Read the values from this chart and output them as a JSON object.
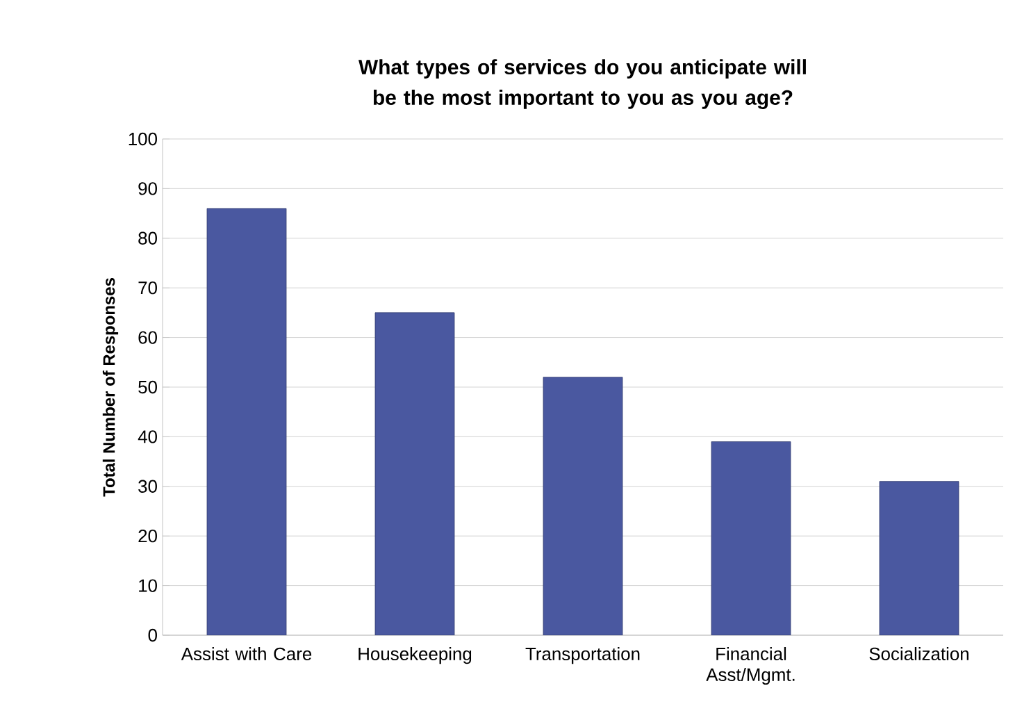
{
  "chart_data": {
    "type": "bar",
    "title": "What types of services do you anticipate will be the most important to you as you age?",
    "ylabel": "Total Number of Responses",
    "categories": [
      "Assist with Care",
      "Housekeeping",
      "Transportation",
      "Financial Asst/Mgmt.",
      "Socialization"
    ],
    "values": [
      86,
      65,
      52,
      39,
      31
    ],
    "color": "#4a58a0",
    "ylim": [
      0,
      100
    ],
    "yticks": [
      0,
      10,
      20,
      30,
      40,
      50,
      60,
      70,
      80,
      90,
      100
    ],
    "grid": "y"
  }
}
